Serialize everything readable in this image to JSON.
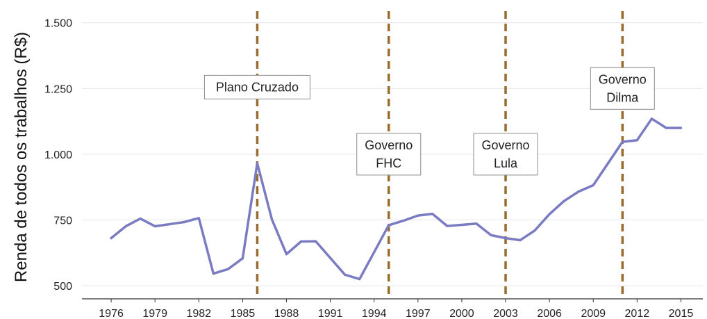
{
  "chart_data": {
    "type": "line",
    "ylabel": "Renda de todos os trabalhos (R$)",
    "xlabel": "",
    "title": "",
    "ylim": [
      450,
      1560
    ],
    "xlim": [
      1974,
      2016.5
    ],
    "x_ticks": [
      1976,
      1979,
      1982,
      1985,
      1988,
      1991,
      1994,
      1997,
      2000,
      2003,
      2006,
      2009,
      2012,
      2015
    ],
    "y_ticks": [
      500,
      750,
      1000,
      1250,
      1500
    ],
    "y_tick_labels": [
      "500",
      "750",
      "1.000",
      "1.250",
      "1.500"
    ],
    "grid": true,
    "series": [
      {
        "color": "#7b7bc4",
        "x": [
          1976,
          1977,
          1978,
          1979,
          1981,
          1982,
          1983,
          1984,
          1985,
          1986,
          1987,
          1988,
          1989,
          1990,
          1992,
          1993,
          1995,
          1996,
          1997,
          1998,
          1999,
          2001,
          2002,
          2003,
          2004,
          2005,
          2006,
          2007,
          2008,
          2009,
          2011,
          2012,
          2013,
          2014,
          2015
        ],
        "values": [
          681,
          726,
          755,
          726,
          742,
          757,
          546,
          563,
          604,
          966,
          752,
          620,
          668,
          669,
          542,
          525,
          730,
          747,
          767,
          773,
          727,
          736,
          692,
          681,
          673,
          710,
          772,
          822,
          858,
          882,
          1047,
          1053,
          1135,
          1100,
          1100
        ]
      }
    ],
    "vlines": {
      "color": "#9a6b2e",
      "x": [
        1986,
        1995,
        2003,
        2011
      ]
    },
    "annotations": [
      {
        "lines": [
          "Plano Cruzado"
        ],
        "x": 1986,
        "y": 1255
      },
      {
        "lines": [
          "Governo",
          "FHC"
        ],
        "x": 1995,
        "y": 1000
      },
      {
        "lines": [
          "Governo",
          "Lula"
        ],
        "x": 2003,
        "y": 1000
      },
      {
        "lines": [
          "Governo",
          "Dilma"
        ],
        "x": 2011,
        "y": 1250
      }
    ]
  }
}
